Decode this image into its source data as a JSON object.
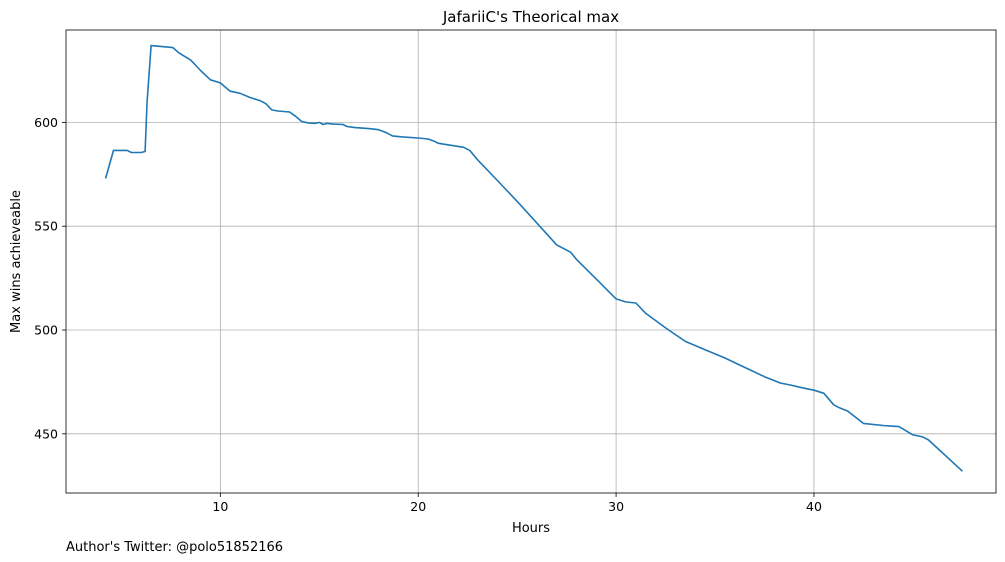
{
  "chart_data": {
    "type": "line",
    "title": "JafariiC's Theorical max",
    "xlabel": "Hours",
    "ylabel": "Max wins achieveable",
    "xlim": [
      2.2,
      49.2
    ],
    "ylim": [
      421.5,
      644.5
    ],
    "xticks": [
      10,
      20,
      30,
      40
    ],
    "yticks": [
      450,
      500,
      550,
      600
    ],
    "grid": true,
    "series": [
      {
        "color": "#1f77b4",
        "x": [
          4.2,
          4.6,
          5.3,
          5.5,
          6.0,
          6.2,
          6.3,
          6.5,
          7.6,
          7.9,
          8.5,
          9.0,
          9.5,
          10.0,
          10.5,
          11.0,
          11.5,
          12.0,
          12.3,
          12.6,
          12.9,
          13.5,
          13.8,
          14.1,
          14.4,
          14.8,
          15.0,
          15.2,
          15.4,
          15.7,
          16.2,
          16.4,
          16.8,
          17.5,
          18.0,
          18.4,
          18.7,
          19.2,
          20.0,
          20.5,
          20.8,
          21.0,
          21.3,
          22.3,
          22.6,
          23.0,
          24.0,
          25.0,
          26.0,
          27.0,
          27.7,
          28.0,
          29.0,
          30.0,
          30.5,
          31.0,
          31.5,
          32.5,
          33.5,
          34.5,
          35.5,
          36.5,
          37.5,
          38.3,
          38.8,
          39.5,
          40.0,
          40.5,
          41.0,
          41.3,
          41.7,
          42.5,
          43.5,
          44.3,
          45.0,
          45.5,
          45.8,
          47.5
        ],
        "y": [
          573,
          586.5,
          586.5,
          585.5,
          585.5,
          586,
          610,
          637,
          636,
          633.5,
          630,
          625,
          620.5,
          619,
          615,
          614,
          612,
          610.5,
          609,
          606,
          605.5,
          605,
          603,
          600.5,
          599.8,
          599.5,
          600,
          599,
          599.5,
          599.2,
          599,
          598,
          597.5,
          597,
          596.5,
          595,
          593.5,
          593,
          592.5,
          592,
          591,
          590,
          589.5,
          588,
          586.5,
          582,
          572,
          562,
          551.5,
          541,
          537.5,
          534,
          524.5,
          515,
          513.5,
          513,
          508,
          501,
          494.5,
          490.5,
          486.5,
          482,
          477.5,
          474.5,
          473.5,
          472,
          471,
          469.5,
          464,
          462.5,
          461,
          455,
          454,
          453.5,
          449.5,
          448.5,
          447,
          432
        ]
      }
    ]
  },
  "footnote": "Author's Twitter: @polo51852166"
}
